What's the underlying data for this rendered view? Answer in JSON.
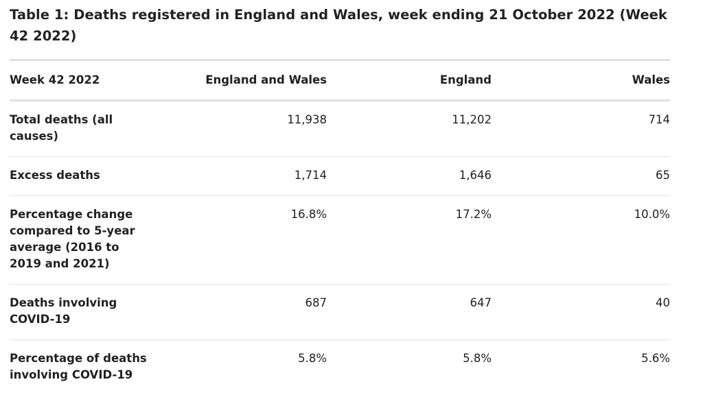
{
  "table": {
    "caption": "Table 1: Deaths registered in England and Wales, week ending 21 October 2022 (Week 42 2022)",
    "headers": [
      "Week 42 2022",
      "England and Wales",
      "England",
      "Wales"
    ],
    "rows": [
      {
        "label": "Total deaths (all causes)",
        "values": [
          "11,938",
          "11,202",
          "714"
        ]
      },
      {
        "label": "Excess deaths",
        "values": [
          "1,714",
          "1,646",
          "65"
        ]
      },
      {
        "label": "Percentage change compared to 5-year average (2016 to 2019 and 2021)",
        "values": [
          "16.8%",
          "17.2%",
          "10.0%"
        ]
      },
      {
        "label": "Deaths involving COVID-19",
        "values": [
          "687",
          "647",
          "40"
        ]
      },
      {
        "label": "Percentage of deaths involving COVID-19",
        "values": [
          "5.8%",
          "5.8%",
          "5.6%"
        ]
      }
    ]
  }
}
